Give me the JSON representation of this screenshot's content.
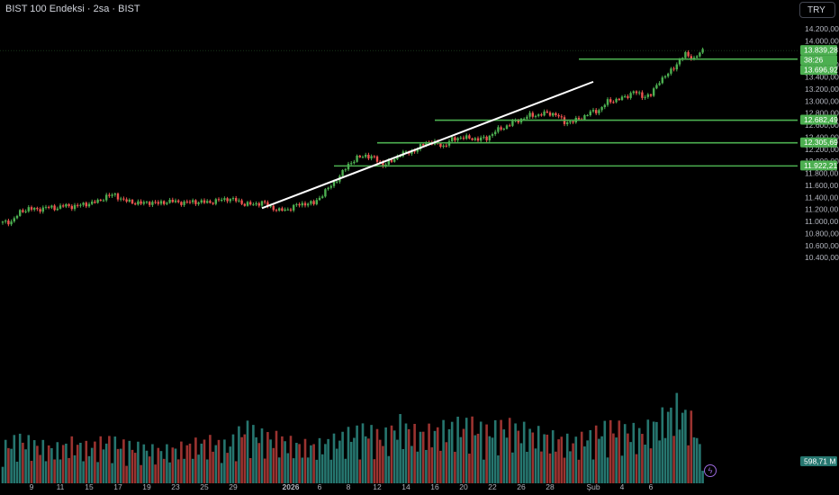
{
  "header": {
    "title": "BIST 100 Endeksi · 2sa · BIST",
    "currency_button": "TRY"
  },
  "colors": {
    "up": "#4caf50",
    "down": "#ef5350",
    "vol_up": "#26766f",
    "vol_down": "#9b3330",
    "line_label": "#4caf50",
    "trendline": "#ffffff",
    "background": "#000000",
    "axis_text": "#b2b5be"
  },
  "chart_data": {
    "type": "candlestick",
    "title": "BIST 100 Endeksi · 2sa · BIST",
    "ylim": [
      10400,
      14400
    ],
    "y_ticks": [
      "14.200,00",
      "14.000,00",
      "13.600,00",
      "13.400,00",
      "13.200,00",
      "13.000,00",
      "12.800,00",
      "12.600,00",
      "12.400,00",
      "12.200,00",
      "12.000,00",
      "11.800,00",
      "11.600,00",
      "11.400,00",
      "11.200,00",
      "11.000,00",
      "10.800,00",
      "10.600,00",
      "10.400,00"
    ],
    "y_tick_values": [
      14200,
      14000,
      13600,
      13400,
      13200,
      13000,
      12800,
      12600,
      12400,
      12200,
      12000,
      11800,
      11600,
      11400,
      11200,
      11000,
      10800,
      10600,
      10400
    ],
    "x_ticks": [
      "9",
      "11",
      "15",
      "17",
      "19",
      "23",
      "25",
      "29",
      "2026",
      "6",
      "8",
      "12",
      "14",
      "16",
      "20",
      "22",
      "26",
      "28",
      "Şub",
      "4",
      "6"
    ],
    "price_labels": [
      {
        "text": "13.839,28",
        "value": 13839.28,
        "kind": "last"
      },
      {
        "text": "38:26",
        "value": 13768,
        "kind": "countdown"
      },
      {
        "text": "13.696,92",
        "value": 13696.92,
        "kind": "line"
      },
      {
        "text": "12.682,49",
        "value": 12682.49,
        "kind": "line"
      },
      {
        "text": "12.305,69",
        "value": 12305.69,
        "kind": "line"
      },
      {
        "text": "11.922,21",
        "value": 11922.21,
        "kind": "line"
      }
    ],
    "volume_label": "598,71 M",
    "horizontal_lines": [
      {
        "value": 13696.92,
        "start_date": "2026-01-30"
      },
      {
        "value": 12682.49,
        "start_date": "2026-01-16"
      },
      {
        "value": 12305.69,
        "start_date": "2026-01-12"
      },
      {
        "value": 11922.21,
        "start_date": "2026-01-07"
      }
    ],
    "trendline": {
      "from": {
        "date": "2025-12-31",
        "value": 11220
      },
      "to": {
        "date": "2026-02-02",
        "value": 13320
      }
    },
    "price_anchors": [
      [
        0,
        10980
      ],
      [
        3,
        11000
      ],
      [
        6,
        11150
      ],
      [
        9,
        11220
      ],
      [
        12,
        11190
      ],
      [
        15,
        11240
      ],
      [
        18,
        11220
      ],
      [
        21,
        11260
      ],
      [
        24,
        11250
      ],
      [
        27,
        11270
      ],
      [
        30,
        11300
      ],
      [
        33,
        11330
      ],
      [
        36,
        11420
      ],
      [
        39,
        11440
      ],
      [
        42,
        11350
      ],
      [
        45,
        11320
      ],
      [
        48,
        11300
      ],
      [
        51,
        11320
      ],
      [
        54,
        11300
      ],
      [
        57,
        11330
      ],
      [
        60,
        11330
      ],
      [
        63,
        11310
      ],
      [
        66,
        11330
      ],
      [
        69,
        11320
      ],
      [
        72,
        11320
      ],
      [
        75,
        11350
      ],
      [
        78,
        11380
      ],
      [
        81,
        11350
      ],
      [
        84,
        11290
      ],
      [
        87,
        11280
      ],
      [
        90,
        11320
      ],
      [
        93,
        11240
      ],
      [
        96,
        11180
      ],
      [
        99,
        11200
      ],
      [
        102,
        11270
      ],
      [
        105,
        11300
      ],
      [
        108,
        11300
      ],
      [
        111,
        11450
      ],
      [
        114,
        11600
      ],
      [
        117,
        11750
      ],
      [
        120,
        11950
      ],
      [
        123,
        12050
      ],
      [
        126,
        12100
      ],
      [
        129,
        12050
      ],
      [
        132,
        11940
      ],
      [
        135,
        12000
      ],
      [
        138,
        12120
      ],
      [
        141,
        12150
      ],
      [
        144,
        12200
      ],
      [
        147,
        12320
      ],
      [
        150,
        12300
      ],
      [
        153,
        12250
      ],
      [
        156,
        12360
      ],
      [
        159,
        12400
      ],
      [
        162,
        12380
      ],
      [
        165,
        12370
      ],
      [
        168,
        12380
      ],
      [
        171,
        12500
      ],
      [
        174,
        12560
      ],
      [
        177,
        12640
      ],
      [
        180,
        12700
      ],
      [
        183,
        12760
      ],
      [
        186,
        12770
      ],
      [
        189,
        12800
      ],
      [
        192,
        12780
      ],
      [
        195,
        12650
      ],
      [
        198,
        12660
      ],
      [
        201,
        12720
      ],
      [
        204,
        12810
      ],
      [
        207,
        12850
      ],
      [
        210,
        12990
      ],
      [
        213,
        13020
      ],
      [
        216,
        13060
      ],
      [
        219,
        13160
      ],
      [
        222,
        13080
      ],
      [
        225,
        13100
      ],
      [
        228,
        13340
      ],
      [
        231,
        13450
      ],
      [
        234,
        13620
      ],
      [
        237,
        13780
      ],
      [
        240,
        13700
      ],
      [
        243,
        13840
      ]
    ],
    "volume_anchors": [
      [
        0,
        250
      ],
      [
        6,
        300
      ],
      [
        12,
        260
      ],
      [
        18,
        230
      ],
      [
        24,
        270
      ],
      [
        30,
        240
      ],
      [
        36,
        290
      ],
      [
        42,
        260
      ],
      [
        48,
        240
      ],
      [
        54,
        220
      ],
      [
        60,
        230
      ],
      [
        66,
        260
      ],
      [
        72,
        280
      ],
      [
        78,
        250
      ],
      [
        84,
        380
      ],
      [
        90,
        320
      ],
      [
        96,
        300
      ],
      [
        102,
        260
      ],
      [
        108,
        250
      ],
      [
        114,
        280
      ],
      [
        120,
        330
      ],
      [
        126,
        360
      ],
      [
        132,
        310
      ],
      [
        138,
        400
      ],
      [
        144,
        330
      ],
      [
        150,
        350
      ],
      [
        156,
        380
      ],
      [
        162,
        400
      ],
      [
        168,
        350
      ],
      [
        174,
        390
      ],
      [
        180,
        360
      ],
      [
        186,
        330
      ],
      [
        192,
        300
      ],
      [
        198,
        280
      ],
      [
        204,
        320
      ],
      [
        210,
        380
      ],
      [
        216,
        360
      ],
      [
        222,
        340
      ],
      [
        228,
        420
      ],
      [
        234,
        520
      ],
      [
        240,
        400
      ],
      [
        243,
        160
      ]
    ],
    "volume_max": 900,
    "x_axis": {
      "type": "date",
      "first_date": "2025-12-05",
      "candles_per_day": 5,
      "months": [
        12,
        12,
        12,
        12,
        12,
        12,
        12,
        12,
        1,
        1,
        1,
        1,
        1,
        1,
        1,
        1,
        1,
        1,
        2,
        2,
        2
      ]
    }
  }
}
